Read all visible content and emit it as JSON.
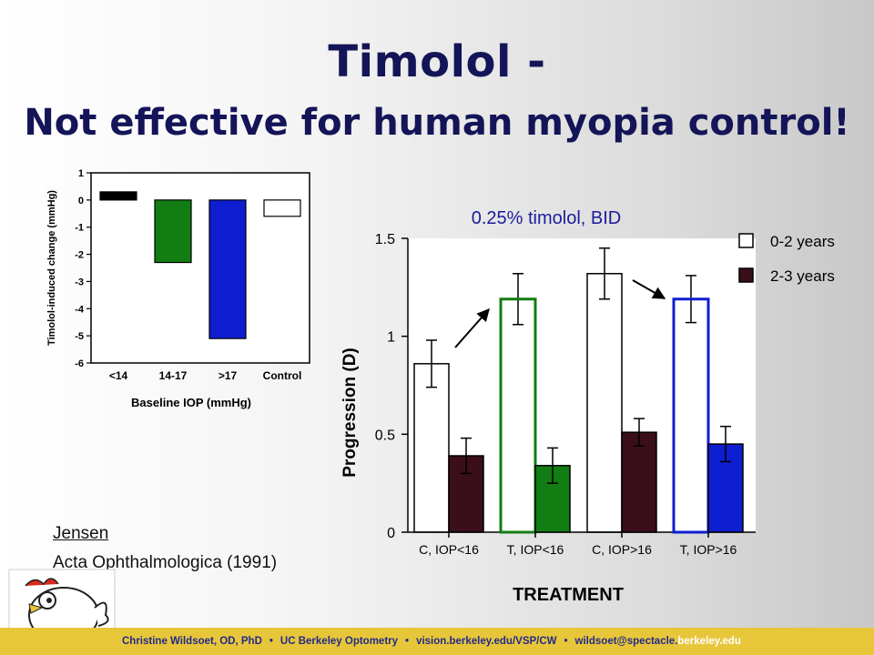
{
  "slide": {
    "title_line1": "Timolol -",
    "title_line2": "Not effective for human myopia control!",
    "reference": {
      "author": "Jensen",
      "journal": "Acta Ophthalmologica (1991)"
    },
    "footer": {
      "name": "Christine Wildsoet, OD, PhD",
      "dept": "UC Berkeley Optometry",
      "url": "vision.berkeley.edu/VSP/CW",
      "email_main": "wildsoet@spectacle.",
      "email_end": "berkeley.edu"
    }
  },
  "chart_data": [
    {
      "type": "bar",
      "categories": [
        "<14",
        "14-17",
        ">17",
        "Control"
      ],
      "values": [
        0.3,
        -2.3,
        -5.1,
        -0.6
      ],
      "colors": [
        "#000000",
        "#127d12",
        "#0f1ed0",
        "#ffffff"
      ],
      "ylim": [
        -6,
        1
      ],
      "yticks": [
        "1",
        "0",
        "-1",
        "-2",
        "-3",
        "-4",
        "-5",
        "-6"
      ],
      "ylabel": "Timolol-induced change (mmHg)",
      "xlabel": "Baseline IOP (mmHg)"
    },
    {
      "type": "bar",
      "annotation": "0.25% timolol, BID",
      "categories": [
        "C, IOP<16",
        "T, IOP<16",
        "C, IOP>16",
        "T, IOP>16"
      ],
      "ylim": [
        0,
        1.5
      ],
      "yticks": [
        "1.5",
        "1",
        "0.5",
        "0"
      ],
      "ylabel": "Progression (D)",
      "xlabel": "TREATMENT",
      "legend_position": "top-right",
      "series": [
        {
          "name": "0-2 years",
          "values": [
            0.86,
            1.19,
            1.32,
            1.19
          ],
          "errors": [
            0.12,
            0.13,
            0.13,
            0.12
          ],
          "outline": [
            "#000000",
            "#127d12",
            "#000000",
            "#0f1ed0"
          ]
        },
        {
          "name": "2-3 years",
          "values": [
            0.39,
            0.34,
            0.51,
            0.45
          ],
          "errors": [
            0.09,
            0.09,
            0.07,
            0.09
          ],
          "fills": [
            "#3a0f1a",
            "#127d12",
            "#3a0f1a",
            "#0f1ed0"
          ]
        }
      ]
    }
  ]
}
